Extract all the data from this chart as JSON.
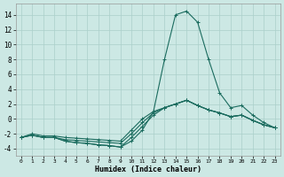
{
  "xlabel": "Humidex (Indice chaleur)",
  "bg_color": "#cce8e4",
  "grid_color": "#aacfca",
  "line_color": "#1a6b5e",
  "xlim": [
    -0.5,
    23.5
  ],
  "ylim": [
    -5,
    15.5
  ],
  "xticks": [
    0,
    1,
    2,
    3,
    4,
    5,
    6,
    7,
    8,
    9,
    10,
    11,
    12,
    13,
    14,
    15,
    16,
    17,
    18,
    19,
    20,
    21,
    22,
    23
  ],
  "yticks": [
    -4,
    -2,
    0,
    2,
    4,
    6,
    8,
    10,
    12,
    14
  ],
  "lines": [
    {
      "x": [
        0,
        1,
        2,
        3,
        4,
        5,
        6,
        7,
        8,
        9,
        10,
        11,
        12,
        13,
        14,
        15,
        16,
        17,
        18,
        19,
        20,
        21,
        22,
        23
      ],
      "y": [
        -2.5,
        -2.2,
        -2.5,
        -2.5,
        -3.0,
        -3.2,
        -3.3,
        -3.5,
        -3.6,
        -3.8,
        -3.0,
        -1.5,
        1.0,
        8.0,
        14.0,
        14.5,
        13.0,
        8.0,
        3.5,
        1.5,
        1.8,
        0.5,
        -0.5,
        -1.2
      ]
    },
    {
      "x": [
        0,
        1,
        2,
        3,
        4,
        5,
        6,
        7,
        8,
        9,
        10,
        11,
        12,
        13,
        14,
        15,
        16,
        17,
        18,
        19,
        20,
        21,
        22,
        23
      ],
      "y": [
        -2.5,
        -2.2,
        -2.5,
        -2.5,
        -3.0,
        -3.2,
        -3.3,
        -3.5,
        -3.6,
        -3.8,
        -2.5,
        -1.0,
        0.5,
        1.5,
        2.0,
        2.5,
        1.8,
        1.2,
        0.8,
        0.3,
        0.5,
        -0.2,
        -0.8,
        -1.2
      ]
    },
    {
      "x": [
        0,
        1,
        2,
        3,
        4,
        5,
        6,
        7,
        8,
        9,
        10,
        11,
        12,
        13,
        14,
        15,
        16,
        17,
        18,
        19,
        20,
        21,
        22,
        23
      ],
      "y": [
        -2.5,
        -2.2,
        -2.5,
        -2.5,
        -2.8,
        -2.9,
        -3.0,
        -3.1,
        -3.2,
        -3.3,
        -2.0,
        -0.5,
        0.8,
        1.5,
        2.0,
        2.5,
        1.8,
        1.2,
        0.8,
        0.3,
        0.5,
        -0.2,
        -0.8,
        -1.2
      ]
    },
    {
      "x": [
        0,
        1,
        2,
        3,
        4,
        5,
        6,
        7,
        8,
        9,
        10,
        11,
        12,
        13,
        14,
        15,
        16,
        17,
        18,
        19,
        20,
        21,
        22,
        23
      ],
      "y": [
        -2.5,
        -2.0,
        -2.3,
        -2.3,
        -2.5,
        -2.6,
        -2.7,
        -2.8,
        -2.9,
        -3.0,
        -1.5,
        0.0,
        1.0,
        1.5,
        2.0,
        2.5,
        1.8,
        1.2,
        0.8,
        0.3,
        0.5,
        -0.2,
        -0.8,
        -1.2
      ]
    }
  ],
  "marker": "+",
  "markersize": 3,
  "linewidth": 0.8
}
